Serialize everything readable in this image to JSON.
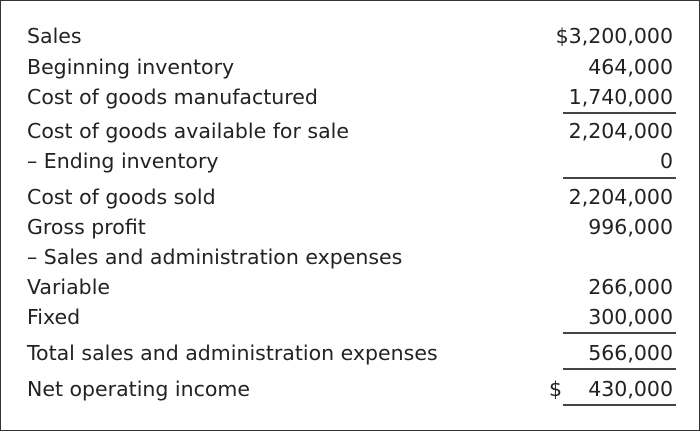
{
  "rows": [
    {
      "label": "Sales",
      "value": "$3,200,000"
    },
    {
      "label": "Beginning inventory",
      "value": "464,000"
    },
    {
      "label": "Cost of goods manufactured",
      "value": "1,740,000"
    },
    {
      "label": "Cost of goods available for sale",
      "value": "2,204,000"
    },
    {
      "label": "– Ending inventory",
      "value": "0"
    },
    {
      "label": "Cost of goods sold",
      "value": "2,204,000"
    },
    {
      "label": "Gross profit",
      "value": "996,000"
    },
    {
      "label": "– Sales and administration expenses",
      "value": ""
    },
    {
      "label": "Variable",
      "value": "266,000"
    },
    {
      "label": "Fixed",
      "value": "300,000"
    },
    {
      "label": "Total sales and administration expenses",
      "value": "566,000"
    },
    {
      "label": "Net operating income",
      "currency": "$",
      "value": "430,000"
    }
  ]
}
